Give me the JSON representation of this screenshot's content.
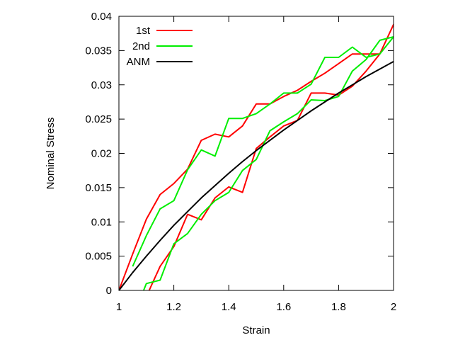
{
  "chart_data": {
    "type": "line",
    "title": "",
    "xlabel": "Strain",
    "ylabel": "Nominal Stress",
    "xlim": [
      1,
      2
    ],
    "ylim": [
      0,
      0.04
    ],
    "x_ticks": [
      "1",
      "1.2",
      "1.4",
      "1.6",
      "1.8",
      "2"
    ],
    "x_tick_values": [
      1,
      1.2,
      1.4,
      1.6,
      1.8,
      2
    ],
    "y_ticks": [
      "0",
      "0.005",
      "0.01",
      "0.015",
      "0.02",
      "0.025",
      "0.03",
      "0.035",
      "0.04"
    ],
    "y_tick_values": [
      0,
      0.005,
      0.01,
      0.015,
      0.02,
      0.025,
      0.03,
      0.035,
      0.04
    ],
    "grid": false,
    "legend_position": "top-left",
    "series": [
      {
        "name": "1st",
        "color": "#ff0000",
        "x": [
          1.0,
          1.05,
          1.1,
          1.15,
          1.2,
          1.25,
          1.3,
          1.35,
          1.4,
          1.45,
          1.5,
          1.55,
          1.6,
          1.65,
          1.7,
          1.75,
          1.8,
          1.85,
          1.9,
          1.95,
          2.0,
          1.95,
          1.9,
          1.85,
          1.8,
          1.75,
          1.7,
          1.65,
          1.6,
          1.55,
          1.5,
          1.45,
          1.4,
          1.35,
          1.3,
          1.25,
          1.2,
          1.15,
          1.11
        ],
        "y": [
          0.0,
          0.0053,
          0.0104,
          0.014,
          0.0156,
          0.0177,
          0.0219,
          0.0228,
          0.0224,
          0.024,
          0.0272,
          0.0272,
          0.0283,
          0.0292,
          0.0305,
          0.0317,
          0.0331,
          0.0345,
          0.0345,
          0.0345,
          0.0388,
          0.0345,
          0.032,
          0.0298,
          0.0285,
          0.0288,
          0.0288,
          0.0248,
          0.024,
          0.0224,
          0.0207,
          0.0143,
          0.0151,
          0.0135,
          0.0103,
          0.0111,
          0.0064,
          0.0035,
          0.0
        ]
      },
      {
        "name": "2nd",
        "color": "#00ee00",
        "x": [
          1.05,
          1.1,
          1.15,
          1.2,
          1.25,
          1.3,
          1.35,
          1.4,
          1.45,
          1.5,
          1.55,
          1.6,
          1.65,
          1.7,
          1.75,
          1.8,
          1.85,
          1.9,
          1.95,
          2.0,
          1.95,
          1.9,
          1.85,
          1.8,
          1.75,
          1.7,
          1.65,
          1.6,
          1.55,
          1.5,
          1.45,
          1.4,
          1.35,
          1.3,
          1.25,
          1.2,
          1.15,
          1.1,
          1.09
        ],
        "y": [
          0.0035,
          0.008,
          0.0119,
          0.0131,
          0.0176,
          0.0205,
          0.0196,
          0.0251,
          0.0251,
          0.0258,
          0.0272,
          0.0288,
          0.0288,
          0.0301,
          0.034,
          0.034,
          0.0355,
          0.034,
          0.0345,
          0.037,
          0.0365,
          0.0337,
          0.032,
          0.0283,
          0.0277,
          0.0278,
          0.0258,
          0.0246,
          0.0233,
          0.0191,
          0.0175,
          0.0143,
          0.0131,
          0.0111,
          0.0083,
          0.0068,
          0.0015,
          0.001,
          0.0
        ]
      },
      {
        "name": "ANM",
        "color": "#000000",
        "x": [
          1.0,
          1.05,
          1.1,
          1.15,
          1.2,
          1.25,
          1.3,
          1.35,
          1.4,
          1.45,
          1.5,
          1.55,
          1.6,
          1.65,
          1.7,
          1.75,
          1.8,
          1.85,
          1.9,
          1.95,
          2.0
        ],
        "y": [
          0.0,
          0.0026,
          0.005,
          0.0073,
          0.0095,
          0.0115,
          0.0135,
          0.0153,
          0.0171,
          0.0188,
          0.0204,
          0.0219,
          0.0234,
          0.0248,
          0.0262,
          0.0275,
          0.0288,
          0.03,
          0.0312,
          0.0323,
          0.0334
        ]
      }
    ]
  }
}
